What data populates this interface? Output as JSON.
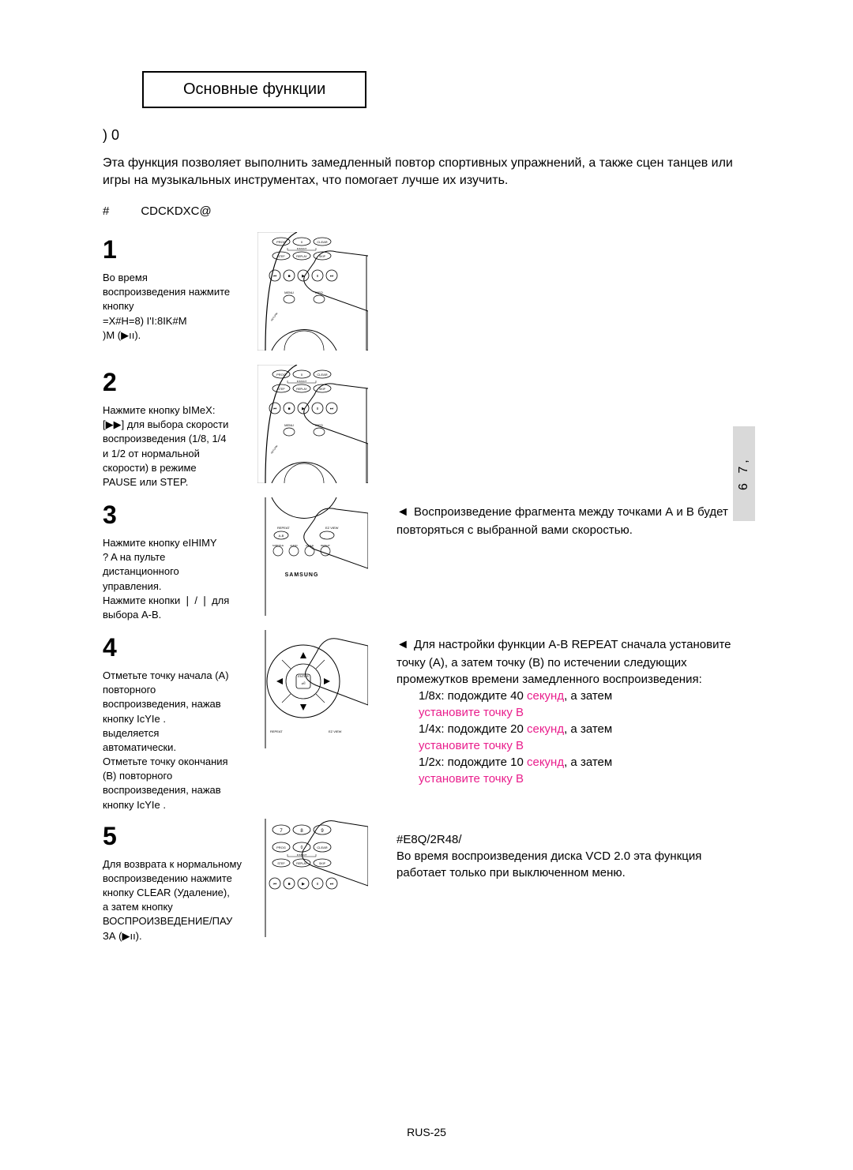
{
  "header": {
    "title": "Основные функции"
  },
  "section_code": ") 0",
  "intro": "Эта функция позволяет выполнить замедленный повтор спортивных упражнений, а также сцен танцев или игры на музыкальных инструментах, что помогает лучше их изучить.",
  "sub_hash": "#",
  "sub_code": "CDCKDXC@",
  "side_tab": "6 7,",
  "remote_labels": {
    "prog": "PROG",
    "zero": "0",
    "clear": "CLEAR",
    "instant": "INSTANT",
    "step": "STEP",
    "replay": "REPLAY",
    "skip": "SKIP",
    "menu": "MENU",
    "info": "INFO",
    "return": "RETURN",
    "ez": "EZ VIEW",
    "repeat": "REPEAT",
    "ab": "A-B",
    "subtitle": "SUBTITLE",
    "audio": "AUDIO",
    "angle": "ANGLE",
    "repeat2": "REPEAT",
    "brand": "SAMSUNG",
    "enter": "ENTER",
    "seven": "7",
    "eight": "8",
    "nine": "9"
  },
  "steps": [
    {
      "num": "1",
      "text_lines": [
        "Во время",
        "воспроизведения нажмите",
        "кнопку",
        "=X#H=8) I'I:8IK#M",
        ")M  (▶ıı)."
      ],
      "remote_variant": "top"
    },
    {
      "num": "2",
      "text_lines": [
        "Нажмите кнопку bIMeX:",
        "[▶▶] для выбора скорости",
        "воспроизведения (1/8, 1/4",
        "и 1/2 от нормальной",
        "скорости) в режиме",
        "PAUSE или STEP."
      ],
      "remote_variant": "top"
    },
    {
      "num": "3",
      "text_lines": [
        "Нажмите кнопку eIHIMY",
        "?    A   на пульте",
        "дистанционного",
        "управления.",
        "Нажмите кнопки ❘ / ❘ для",
        "выбора A-B."
      ],
      "right_arrow_text": "Воспроизведение фрагмента между точками А и В будет повторяться с выбранной вами скоростью.",
      "remote_variant": "bottom"
    },
    {
      "num": "4",
      "text_lines": [
        "Отметьте точку начала (A)",
        "повторного",
        "воспроизведения, нажав",
        "кнопку IcYIe   .",
        "   выделяется",
        "автоматически.",
        "Отметьте точку окончания",
        "(B) повторного",
        "воспроизведения, нажав",
        "кнопку IcYIe   ."
      ],
      "right": {
        "lead": "Для настройки функции A-B REPEAT сначала установите точку (А), а затем точку (В) по истечении следующих промежутков времени замедленного воспроизведения:",
        "items": [
          {
            "prefix": "1/8x: подождите 40 ",
            "pink1": "секунд",
            "mid": ", а затем",
            "pink2": "установите точку B"
          },
          {
            "prefix": "1/4x: подождите 20 ",
            "pink1": "секунд",
            "mid": ", а затем",
            "pink2": "установите точку B"
          },
          {
            "prefix": "1/2x: подождите 10 ",
            "pink1": "секунд",
            "mid": ", а затем",
            "pink2": "установите точку B"
          }
        ]
      },
      "remote_variant": "dpad"
    },
    {
      "num": "5",
      "text_lines": [
        "Для возврата к нормальному",
        "воспроизведению нажмите",
        "кнопку CLEAR (Удаление),",
        "а затем кнопку",
        "ВОСПРОИЗВЕДЕНИЕ/ПАУ",
        "ЗА (▶ıı)."
      ],
      "right_note_code": "#E8Q/2R48/",
      "right_note": "Во время воспроизведения диска VCD 2.0 эта функция работает только при выключенном меню.",
      "remote_variant": "numbers"
    }
  ],
  "footer": "RUS-25",
  "colors": {
    "pink": "#e91e8c",
    "tab_bg": "#d9d9d9"
  }
}
